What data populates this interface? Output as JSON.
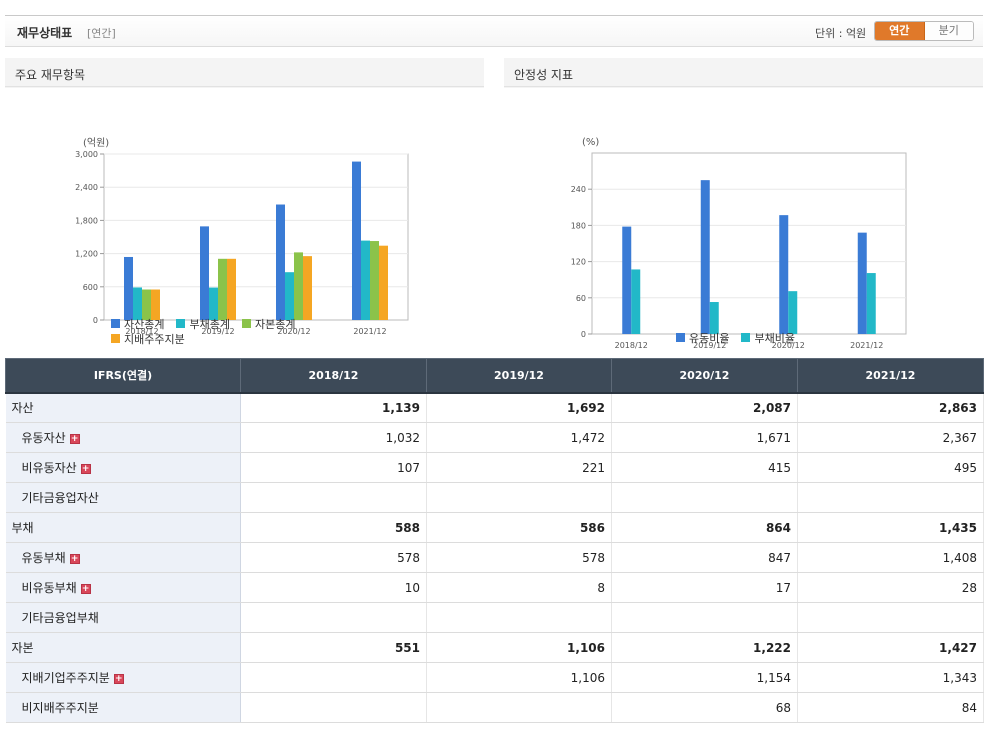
{
  "header": {
    "title": "재무상태표",
    "period": "[연간]",
    "unit": "단위 : 억원",
    "toggle_annual": "연간",
    "toggle_quarter": "분기"
  },
  "colors": {
    "accent_orange": "#e0792a",
    "table_header": "#3d4a58",
    "row_label_bg": "#edf1f8"
  },
  "chart_data": [
    {
      "type": "bar",
      "title": "주요 재무항목",
      "ylabel": "(억원)",
      "categories": [
        "2018/12",
        "2019/12",
        "2020/12",
        "2021/12"
      ],
      "ylim": [
        0,
        3000
      ],
      "yticks": [
        0,
        600,
        1200,
        1800,
        2400,
        3000
      ],
      "ytick_labels": [
        "0",
        "600",
        "1,200",
        "1,800",
        "2,400",
        "3,000"
      ],
      "series": [
        {
          "name": "자산총계",
          "color": "#3a7bd5",
          "values": [
            1139,
            1692,
            2087,
            2863
          ]
        },
        {
          "name": "부채총계",
          "color": "#22b8c8",
          "values": [
            588,
            586,
            864,
            1435
          ]
        },
        {
          "name": "자본총계",
          "color": "#8bc34a",
          "values": [
            551,
            1106,
            1222,
            1427
          ]
        },
        {
          "name": "지배주주지분",
          "color": "#f5a623",
          "values": [
            551,
            1106,
            1154,
            1343
          ]
        }
      ],
      "grid": true,
      "legend": "bottom-left"
    },
    {
      "type": "bar",
      "title": "안정성 지표",
      "ylabel": "(%)",
      "categories": [
        "2018/12",
        "2019/12",
        "2020/12",
        "2021/12"
      ],
      "ylim": [
        0,
        300
      ],
      "yticks": [
        0,
        60,
        120,
        180,
        240
      ],
      "ytick_labels": [
        "0",
        "60",
        "120",
        "180",
        "240"
      ],
      "series": [
        {
          "name": "유동비율",
          "color": "#3a7bd5",
          "values": [
            178,
            255,
            197,
            168
          ]
        },
        {
          "name": "부채비율",
          "color": "#22b8c8",
          "values": [
            107,
            53,
            71,
            101
          ]
        }
      ],
      "grid": true,
      "legend": "bottom-center"
    }
  ],
  "table": {
    "header": [
      "IFRS(연결)",
      "2018/12",
      "2019/12",
      "2020/12",
      "2021/12"
    ],
    "rows": [
      {
        "label": "자산",
        "values": [
          "1,139",
          "1,692",
          "2,087",
          "2,863"
        ]
      },
      {
        "label": "유동자산",
        "values": [
          "1,032",
          "1,472",
          "1,671",
          "2,367"
        ]
      },
      {
        "label": "비유동자산",
        "values": [
          "107",
          "221",
          "415",
          "495"
        ]
      },
      {
        "label": "기타금융업자산",
        "values": [
          "",
          "",
          "",
          ""
        ]
      },
      {
        "label": "부채",
        "values": [
          "588",
          "586",
          "864",
          "1,435"
        ]
      },
      {
        "label": "유동부채",
        "values": [
          "578",
          "578",
          "847",
          "1,408"
        ]
      },
      {
        "label": "비유동부채",
        "values": [
          "10",
          "8",
          "17",
          "28"
        ]
      },
      {
        "label": "기타금융업부채",
        "values": [
          "",
          "",
          "",
          ""
        ]
      },
      {
        "label": "자본",
        "values": [
          "551",
          "1,106",
          "1,222",
          "1,427"
        ]
      },
      {
        "label": "지배기업주주지분",
        "values": [
          "",
          "1,106",
          "1,154",
          "1,343"
        ]
      },
      {
        "label": "비지배주주지분",
        "values": [
          "",
          "",
          "68",
          "84"
        ]
      }
    ]
  }
}
